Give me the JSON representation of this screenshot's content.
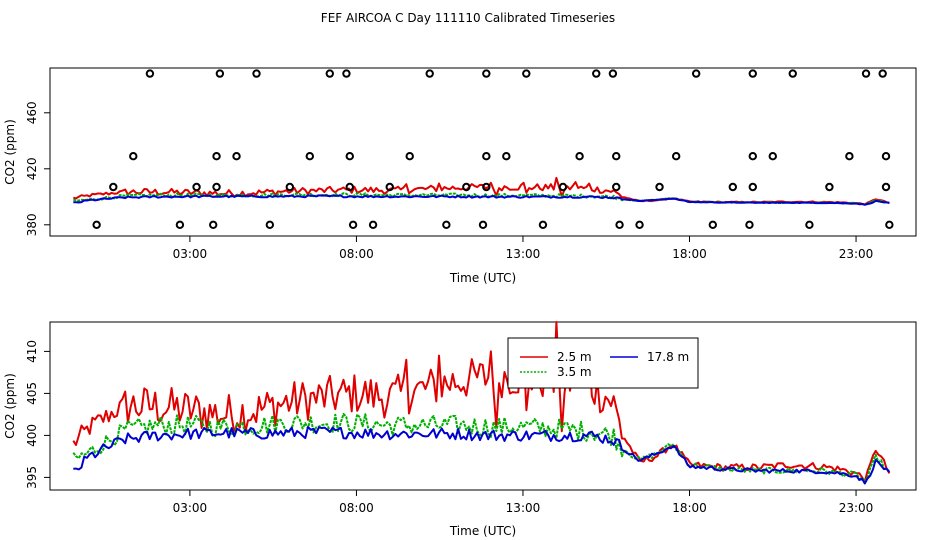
{
  "title": "FEF AIRCOA C  Day 111110  Calibrated Timeseries",
  "colors": {
    "s1": "#e00000",
    "s2": "#00b000",
    "s3": "#0000d0"
  },
  "legend": {
    "s1": "2.5 m",
    "s2": "3.5 m",
    "s3": "17.8 m"
  },
  "chart_data": [
    {
      "type": "line",
      "title": "",
      "xlabel": "Time (UTC)",
      "ylabel": "CO2 (ppm)",
      "xlim": [
        -1.2,
        24.8
      ],
      "ylim": [
        372,
        492
      ],
      "xticks": [
        3,
        8,
        13,
        18,
        23
      ],
      "xtick_labels": [
        "03:00",
        "08:00",
        "13:00",
        "18:00",
        "23:00"
      ],
      "yticks": [
        380,
        420,
        460
      ],
      "ytick_labels": [
        "380",
        "420",
        "460"
      ],
      "cal_points": [
        {
          "x": 0.2,
          "y": 380
        },
        {
          "x": 0.7,
          "y": 407
        },
        {
          "x": 1.3,
          "y": 429
        },
        {
          "x": 1.8,
          "y": 488
        },
        {
          "x": 2.7,
          "y": 380
        },
        {
          "x": 3.2,
          "y": 407
        },
        {
          "x": 3.7,
          "y": 380
        },
        {
          "x": 3.8,
          "y": 407
        },
        {
          "x": 3.8,
          "y": 429
        },
        {
          "x": 3.9,
          "y": 488
        },
        {
          "x": 4.4,
          "y": 429
        },
        {
          "x": 5.0,
          "y": 488
        },
        {
          "x": 5.4,
          "y": 380
        },
        {
          "x": 6.0,
          "y": 407
        },
        {
          "x": 6.6,
          "y": 429
        },
        {
          "x": 7.2,
          "y": 488
        },
        {
          "x": 7.7,
          "y": 488
        },
        {
          "x": 7.8,
          "y": 429
        },
        {
          "x": 7.8,
          "y": 407
        },
        {
          "x": 7.9,
          "y": 380
        },
        {
          "x": 8.5,
          "y": 380
        },
        {
          "x": 9.0,
          "y": 407
        },
        {
          "x": 9.6,
          "y": 429
        },
        {
          "x": 10.2,
          "y": 488
        },
        {
          "x": 10.7,
          "y": 380
        },
        {
          "x": 11.3,
          "y": 407
        },
        {
          "x": 11.8,
          "y": 380
        },
        {
          "x": 11.9,
          "y": 407
        },
        {
          "x": 11.9,
          "y": 429
        },
        {
          "x": 11.9,
          "y": 488
        },
        {
          "x": 12.5,
          "y": 429
        },
        {
          "x": 13.1,
          "y": 488
        },
        {
          "x": 13.6,
          "y": 380
        },
        {
          "x": 14.2,
          "y": 407
        },
        {
          "x": 14.7,
          "y": 429
        },
        {
          "x": 15.2,
          "y": 488
        },
        {
          "x": 15.7,
          "y": 488
        },
        {
          "x": 15.8,
          "y": 429
        },
        {
          "x": 15.8,
          "y": 407
        },
        {
          "x": 15.9,
          "y": 380
        },
        {
          "x": 16.5,
          "y": 380
        },
        {
          "x": 17.1,
          "y": 407
        },
        {
          "x": 17.6,
          "y": 429
        },
        {
          "x": 18.2,
          "y": 488
        },
        {
          "x": 18.7,
          "y": 380
        },
        {
          "x": 19.3,
          "y": 407
        },
        {
          "x": 19.8,
          "y": 380
        },
        {
          "x": 19.9,
          "y": 407
        },
        {
          "x": 19.9,
          "y": 429
        },
        {
          "x": 19.9,
          "y": 488
        },
        {
          "x": 20.5,
          "y": 429
        },
        {
          "x": 21.1,
          "y": 488
        },
        {
          "x": 21.6,
          "y": 380
        },
        {
          "x": 22.2,
          "y": 407
        },
        {
          "x": 22.8,
          "y": 429
        },
        {
          "x": 23.3,
          "y": 488
        },
        {
          "x": 23.8,
          "y": 488
        },
        {
          "x": 23.9,
          "y": 429
        },
        {
          "x": 23.9,
          "y": 407
        },
        {
          "x": 24.0,
          "y": 380
        }
      ]
    },
    {
      "type": "line",
      "title": "",
      "xlabel": "Time (UTC)",
      "ylabel": "CO2 (ppm)",
      "xlim": [
        -1.2,
        24.8
      ],
      "ylim": [
        393.5,
        413.5
      ],
      "xticks": [
        3,
        8,
        13,
        18,
        23
      ],
      "xtick_labels": [
        "03:00",
        "08:00",
        "13:00",
        "18:00",
        "23:00"
      ],
      "yticks": [
        395,
        400,
        405,
        410
      ],
      "ytick_labels": [
        "395",
        "400",
        "405",
        "410"
      ],
      "legend_position": "top-center"
    }
  ],
  "series_meta": {
    "names": [
      "2.5 m",
      "3.5 m",
      "17.8 m"
    ],
    "profile_x": [
      -0.5,
      0,
      1,
      2,
      3,
      4,
      5,
      6,
      7,
      8,
      9,
      10,
      11,
      12,
      13,
      14,
      15,
      15.7,
      16,
      16.5,
      17,
      17.5,
      18,
      19,
      20,
      21,
      22,
      22.5,
      23,
      23.3,
      23.6,
      24
    ],
    "profile_s1": [
      399,
      401,
      403.5,
      403.5,
      403,
      402.5,
      403,
      404,
      404.5,
      405,
      404.5,
      405.5,
      406.5,
      407,
      407,
      406.5,
      406,
      404,
      400,
      396.8,
      397.5,
      399,
      396.5,
      396.2,
      396.2,
      396.5,
      396.3,
      396.0,
      395.5,
      394.8,
      398.5,
      395.5
    ],
    "profile_s2": [
      397,
      398,
      400.5,
      401.2,
      401.2,
      401,
      401.2,
      401.5,
      401.5,
      401.5,
      401.2,
      401.2,
      401.2,
      401,
      401,
      400.8,
      400.5,
      400,
      398.5,
      397.0,
      397.8,
      399,
      396.5,
      396.0,
      395.8,
      395.8,
      395.8,
      395.5,
      395.3,
      394.5,
      397.5,
      395.5
    ],
    "profile_s3": [
      395.5,
      397.5,
      399.5,
      400,
      400.2,
      400.3,
      400.2,
      400.3,
      400.4,
      400.3,
      400.2,
      400.2,
      400.2,
      400,
      400,
      400,
      400,
      399.5,
      398.5,
      397.0,
      397.8,
      398.8,
      396.3,
      396.0,
      395.8,
      395.8,
      395.7,
      395.5,
      395.2,
      394.3,
      397.0,
      395.5
    ],
    "profile_noise": [
      1.2,
      1.0,
      0.7
    ],
    "profile_noise_peak": [
      2.5,
      1.2,
      0.7
    ]
  }
}
